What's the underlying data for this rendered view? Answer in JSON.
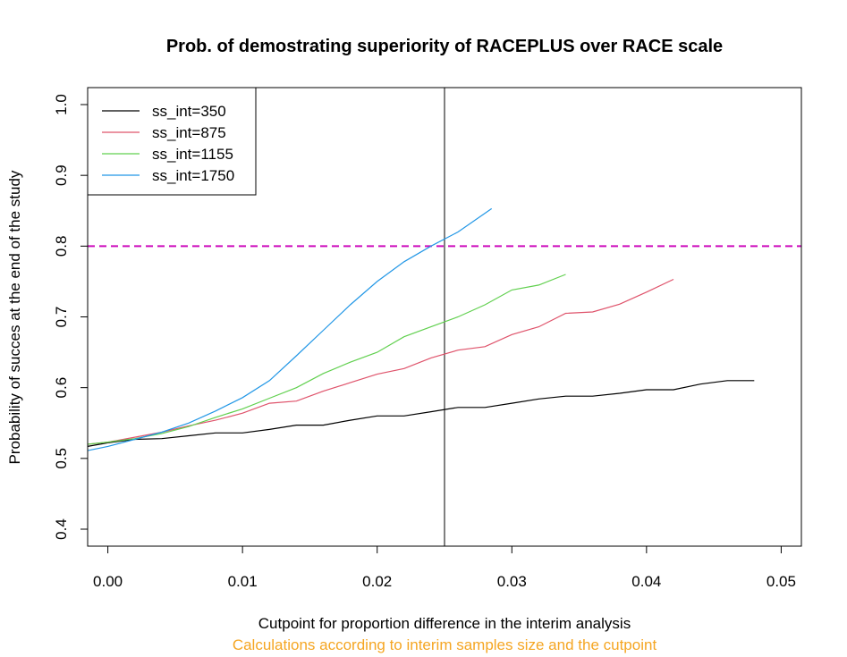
{
  "chart_data": {
    "type": "line",
    "title": "Prob. of demostrating superiority of RACEPLUS over RACE scale",
    "xlabel": "Cutpoint for proportion difference in the interim analysis",
    "ylabel": "Probability of succes at the end of the study",
    "subtitle": "Calculations according to interim samples size and the cutpoint",
    "xlim": [
      -0.0015,
      0.0515
    ],
    "ylim": [
      0.376,
      1.024
    ],
    "x_ticks": [
      0.0,
      0.01,
      0.02,
      0.03,
      0.04,
      0.05
    ],
    "x_tick_labels": [
      "0.00",
      "0.01",
      "0.02",
      "0.03",
      "0.04",
      "0.05"
    ],
    "y_ticks": [
      0.4,
      0.5,
      0.6,
      0.7,
      0.8,
      0.9,
      1.0
    ],
    "y_tick_labels": [
      "0.4",
      "0.5",
      "0.6",
      "0.7",
      "0.8",
      "0.9",
      "1.0"
    ],
    "grid": false,
    "legend_position": "top-left",
    "reference_lines": {
      "horizontal": {
        "y": 0.8,
        "color": "#CD0BBC",
        "style": "dashed"
      },
      "vertical": {
        "x": 0.025,
        "color": "#000000",
        "style": "solid"
      }
    },
    "series": [
      {
        "name": "ss_int=350",
        "color": "#000000",
        "x": [
          -0.0015,
          0.0,
          0.002,
          0.004,
          0.006,
          0.008,
          0.01,
          0.012,
          0.014,
          0.016,
          0.018,
          0.02,
          0.022,
          0.024,
          0.026,
          0.028,
          0.03,
          0.032,
          0.034,
          0.036,
          0.038,
          0.04,
          0.042,
          0.044,
          0.046,
          0.048
        ],
        "y": [
          0.517,
          0.522,
          0.527,
          0.528,
          0.532,
          0.536,
          0.536,
          0.541,
          0.547,
          0.547,
          0.554,
          0.56,
          0.56,
          0.566,
          0.572,
          0.572,
          0.578,
          0.584,
          0.588,
          0.588,
          0.592,
          0.597,
          0.597,
          0.605,
          0.61,
          0.61
        ]
      },
      {
        "name": "ss_int=875",
        "color": "#DF536B",
        "x": [
          -0.0015,
          0.0,
          0.002,
          0.004,
          0.006,
          0.008,
          0.01,
          0.012,
          0.014,
          0.016,
          0.018,
          0.02,
          0.022,
          0.024,
          0.026,
          0.028,
          0.03,
          0.032,
          0.034,
          0.036,
          0.038,
          0.04,
          0.042
        ],
        "y": [
          0.52,
          0.523,
          0.53,
          0.537,
          0.546,
          0.554,
          0.564,
          0.578,
          0.581,
          0.595,
          0.607,
          0.619,
          0.627,
          0.642,
          0.653,
          0.658,
          0.675,
          0.686,
          0.705,
          0.707,
          0.718,
          0.735,
          0.753
        ]
      },
      {
        "name": "ss_int=1155",
        "color": "#61D04F",
        "x": [
          -0.0015,
          0.0,
          0.002,
          0.004,
          0.006,
          0.008,
          0.01,
          0.012,
          0.014,
          0.016,
          0.018,
          0.02,
          0.022,
          0.024,
          0.026,
          0.028,
          0.03,
          0.032,
          0.034
        ],
        "y": [
          0.52,
          0.523,
          0.528,
          0.535,
          0.545,
          0.558,
          0.57,
          0.585,
          0.6,
          0.62,
          0.636,
          0.65,
          0.672,
          0.686,
          0.7,
          0.717,
          0.738,
          0.745,
          0.76
        ]
      },
      {
        "name": "ss_int=1750",
        "color": "#2297E6",
        "x": [
          -0.0015,
          0.0,
          0.002,
          0.004,
          0.006,
          0.008,
          0.01,
          0.012,
          0.014,
          0.016,
          0.018,
          0.02,
          0.022,
          0.024,
          0.026,
          0.0285
        ],
        "y": [
          0.511,
          0.517,
          0.527,
          0.537,
          0.55,
          0.567,
          0.586,
          0.61,
          0.645,
          0.681,
          0.717,
          0.75,
          0.778,
          0.8,
          0.82,
          0.853
        ]
      }
    ]
  }
}
